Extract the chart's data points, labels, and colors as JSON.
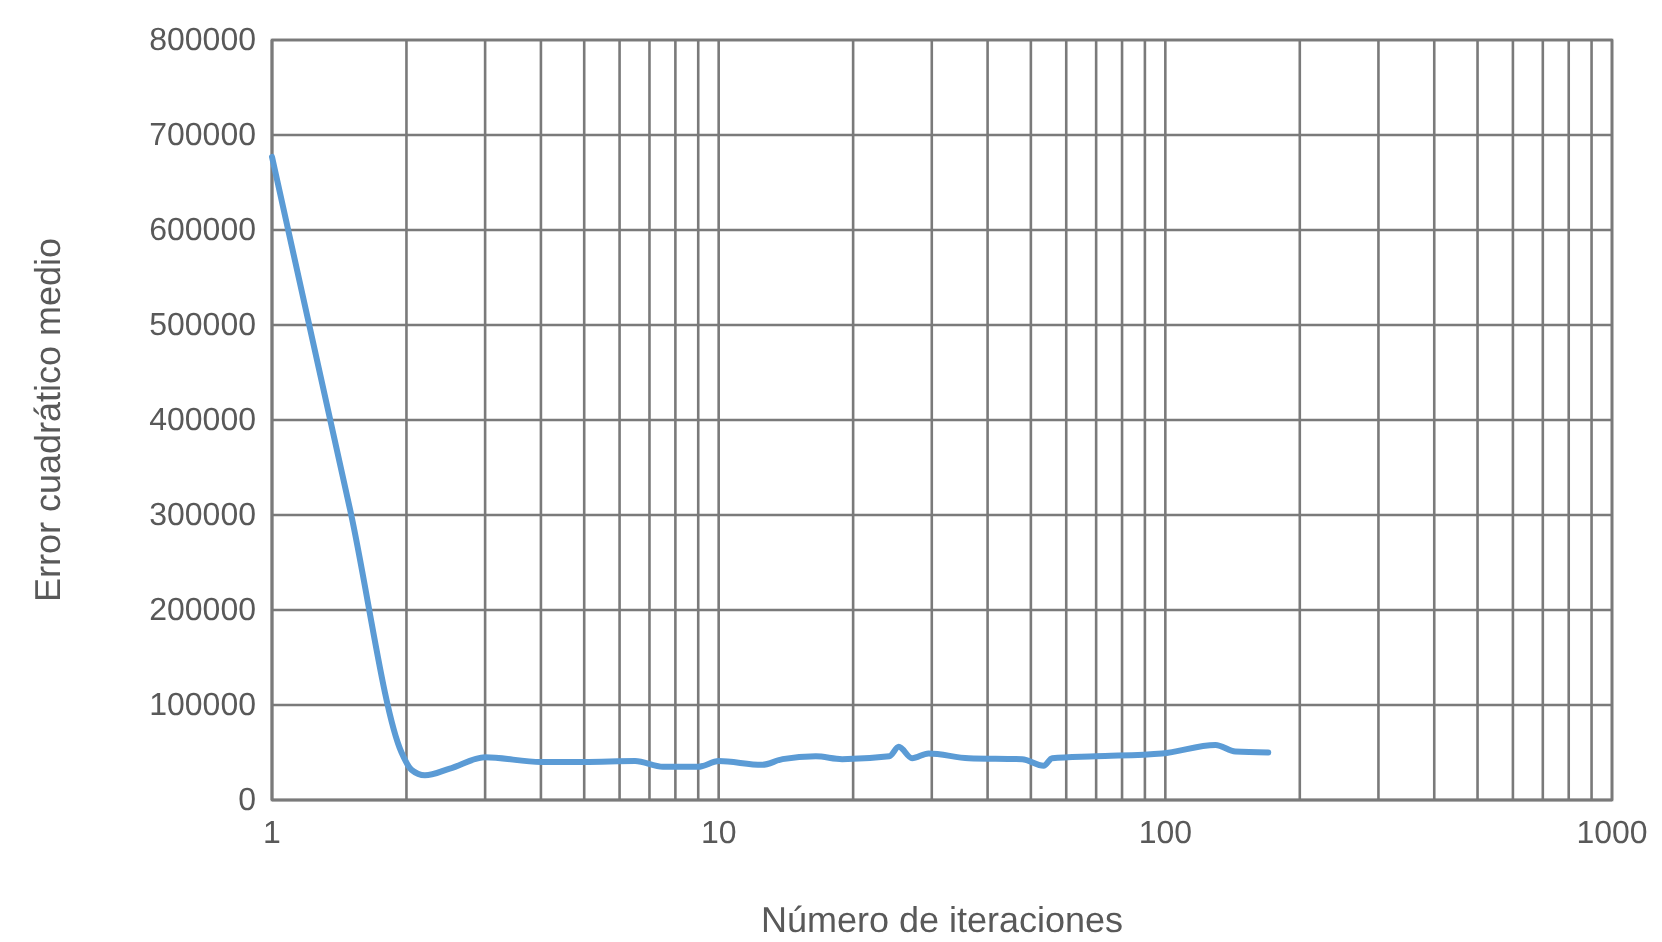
{
  "chart_data": {
    "type": "line",
    "xlabel": "Número de iteraciones",
    "ylabel": "Error cuadrático medio",
    "log": "x",
    "grid": true,
    "marker": "none",
    "line_style": "solid",
    "xlim": [
      1,
      1000
    ],
    "ylim": [
      0,
      800000
    ],
    "xticks": [
      1,
      {
        "value": 2,
        "label": null
      },
      {
        "value": 3,
        "label": null
      },
      {
        "value": 4,
        "label": null
      },
      {
        "value": 5,
        "label": null
      },
      {
        "value": 6,
        "label": null
      },
      {
        "value": 7,
        "label": null
      },
      {
        "value": 8,
        "label": null
      },
      {
        "value": 9,
        "label": null
      },
      10,
      {
        "value": 20,
        "label": null
      },
      {
        "value": 30,
        "label": null
      },
      {
        "value": 40,
        "label": null
      },
      {
        "value": 50,
        "label": null
      },
      {
        "value": 60,
        "label": null
      },
      {
        "value": 70,
        "label": null
      },
      {
        "value": 80,
        "label": null
      },
      {
        "value": 90,
        "label": null
      },
      100,
      {
        "value": 200,
        "label": null
      },
      {
        "value": 300,
        "label": null
      },
      {
        "value": 400,
        "label": null
      },
      {
        "value": 500,
        "label": null
      },
      {
        "value": 600,
        "label": null
      },
      {
        "value": 700,
        "label": null
      },
      {
        "value": 800,
        "label": null
      },
      {
        "value": 900,
        "label": null
      },
      1000
    ],
    "yticks": [
      0,
      100000,
      200000,
      300000,
      400000,
      500000,
      600000,
      700000,
      800000
    ],
    "series": [
      {
        "color": "#5b9bd5",
        "x": [
          1,
          1.5,
          1.95,
          2.05,
          2.2,
          2.5,
          3,
          4,
          5,
          6.5,
          7.5,
          9,
          10,
          12.5,
          13.9,
          16.5,
          18.9,
          24.1,
          25.3,
          27.1,
          29.5,
          36.3,
          47.8,
          53.4,
          55.8,
          69.8,
          98.4,
          129.5,
          143.5,
          170
        ],
        "values": [
          677000,
          303000,
          50000,
          32000,
          26000,
          33000,
          45000,
          40000,
          40000,
          41000,
          35000,
          35000,
          41000,
          37000,
          43000,
          46000,
          43000,
          46000,
          56000,
          44000,
          49000,
          44000,
          43000,
          36000,
          44000,
          46000,
          49000,
          58000,
          51000,
          50000
        ]
      }
    ]
  }
}
